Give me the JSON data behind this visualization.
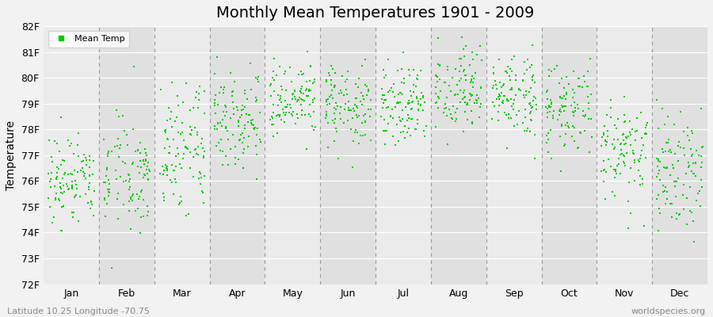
{
  "title": "Monthly Mean Temperatures 1901 - 2009",
  "ylabel": "Temperature",
  "dot_color": "#00CC00",
  "dot_size": 3,
  "ylim": [
    72,
    82
  ],
  "ytick_labels": [
    "72F",
    "73F",
    "74F",
    "75F",
    "76F",
    "77F",
    "78F",
    "79F",
    "80F",
    "81F",
    "82F"
  ],
  "ytick_vals": [
    72,
    73,
    74,
    75,
    76,
    77,
    78,
    79,
    80,
    81,
    82
  ],
  "month_labels": [
    "Jan",
    "Feb",
    "Mar",
    "Apr",
    "May",
    "Jun",
    "Jul",
    "Aug",
    "Sep",
    "Oct",
    "Nov",
    "Dec"
  ],
  "month_positions": [
    1,
    2,
    3,
    4,
    5,
    6,
    7,
    8,
    9,
    10,
    11,
    12
  ],
  "legend_label": "Mean Temp",
  "subtitle_left": "Latitude 10.25 Longitude -70.75",
  "subtitle_right": "worldspecies.org",
  "bg_color": "#f2f2f2",
  "plot_bg_even": "#ebebeb",
  "plot_bg_odd": "#e0e0e0",
  "title_fontsize": 14,
  "axis_fontsize": 10,
  "tick_fontsize": 9,
  "monthly_means": [
    76.0,
    76.2,
    77.2,
    78.5,
    79.0,
    78.8,
    79.0,
    79.5,
    79.2,
    78.8,
    77.2,
    76.5
  ],
  "monthly_stds": [
    1.0,
    1.1,
    1.2,
    0.9,
    0.8,
    0.8,
    0.8,
    0.8,
    0.8,
    0.9,
    1.0,
    1.1
  ],
  "years": 109
}
